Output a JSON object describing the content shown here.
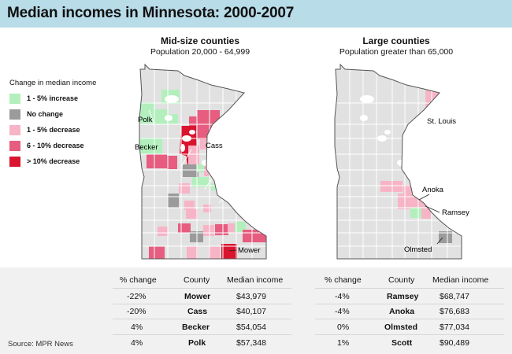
{
  "title": "Median incomes in Minnesota: 2000-2007",
  "mid_map": {
    "heading": "Mid-size counties",
    "subheading": "Population 20,000 - 64,999"
  },
  "large_map": {
    "heading": "Large counties",
    "subheading": "Population greater than 65,000"
  },
  "legend": {
    "title": "Change in median income",
    "items": [
      {
        "label": "1 - 5% increase",
        "color": "#b2efbd"
      },
      {
        "label": "No change",
        "color": "#9b9b9b"
      },
      {
        "label": "1 - 5% decrease",
        "color": "#f7b4c6"
      },
      {
        "label": "6 - 10% decrease",
        "color": "#e65d7f"
      },
      {
        "label": "> 10% decrease",
        "color": "#d9142e"
      }
    ]
  },
  "map_labels": {
    "polk": "Polk",
    "becker": "Becker",
    "cass": "Cass",
    "mower": "Mower",
    "st_louis": "St. Louis",
    "anoka": "Anoka",
    "ramsey": "Ramsey",
    "olmsted": "Olmsted"
  },
  "table": {
    "headers": {
      "pct": "% change",
      "county": "County",
      "income": "Median income"
    },
    "mid_rows": [
      {
        "pct": "-22%",
        "county": "Mower",
        "income": "$43,979"
      },
      {
        "pct": "-20%",
        "county": "Cass",
        "income": "$40,107"
      },
      {
        "pct": "4%",
        "county": "Becker",
        "income": "$54,054"
      },
      {
        "pct": "4%",
        "county": "Polk",
        "income": "$57,348"
      }
    ],
    "large_rows": [
      {
        "pct": "-4%",
        "county": "Ramsey",
        "income": "$68,747"
      },
      {
        "pct": "-4%",
        "county": "Anoka",
        "income": "$76,683"
      },
      {
        "pct": "0%",
        "county": "Olmsted",
        "income": "$77,034"
      },
      {
        "pct": "1%",
        "county": "Scott",
        "income": "$90,489"
      }
    ]
  },
  "source": "Source: MPR News",
  "colors": {
    "base": "#e1e1e1",
    "border": "#ffffff",
    "outline": "#555555",
    "title_bar": "#b8dce8",
    "table_bg": "#f1f1f1"
  }
}
